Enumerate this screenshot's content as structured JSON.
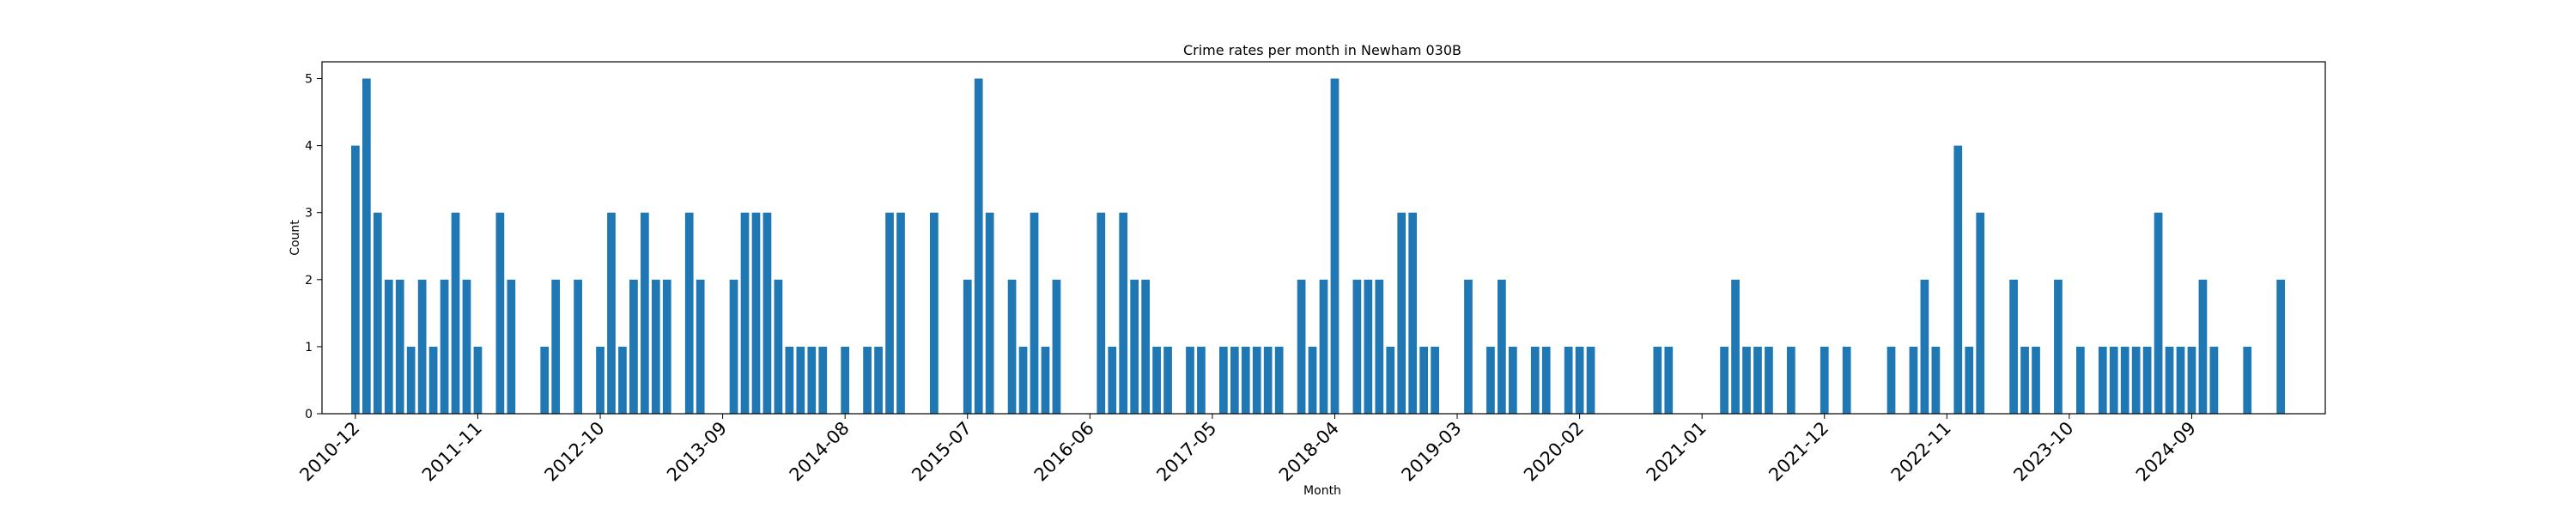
{
  "chart_data": {
    "type": "bar",
    "title": "Crime rates per month in Newham 030B",
    "xlabel": "Month",
    "ylabel": "Count",
    "ylim": [
      0,
      5.25
    ],
    "yticks": [
      0,
      1,
      2,
      3,
      4,
      5
    ],
    "xtick_labels": [
      "2010-12",
      "2011-11",
      "2012-10",
      "2013-09",
      "2014-08",
      "2015-07",
      "2016-06",
      "2017-05",
      "2018-04",
      "2019-03",
      "2020-02",
      "2021-01",
      "2021-12",
      "2022-11",
      "2023-10",
      "2024-09"
    ],
    "grid": false,
    "color": "#1f77b4",
    "points": [
      {
        "month": "2010-12",
        "value": 4
      },
      {
        "month": "2011-01",
        "value": 5
      },
      {
        "month": "2011-02",
        "value": 3
      },
      {
        "month": "2011-03",
        "value": 2
      },
      {
        "month": "2011-04",
        "value": 2
      },
      {
        "month": "2011-05",
        "value": 1
      },
      {
        "month": "2011-06",
        "value": 2
      },
      {
        "month": "2011-07",
        "value": 1
      },
      {
        "month": "2011-08",
        "value": 2
      },
      {
        "month": "2011-09",
        "value": 3
      },
      {
        "month": "2011-10",
        "value": 2
      },
      {
        "month": "2011-11",
        "value": 1
      },
      {
        "month": "2012-01",
        "value": 3
      },
      {
        "month": "2012-02",
        "value": 2
      },
      {
        "month": "2012-05",
        "value": 1
      },
      {
        "month": "2012-06",
        "value": 2
      },
      {
        "month": "2012-08",
        "value": 2
      },
      {
        "month": "2012-10",
        "value": 1
      },
      {
        "month": "2012-11",
        "value": 3
      },
      {
        "month": "2012-12",
        "value": 1
      },
      {
        "month": "2013-01",
        "value": 2
      },
      {
        "month": "2013-02",
        "value": 3
      },
      {
        "month": "2013-03",
        "value": 2
      },
      {
        "month": "2013-04",
        "value": 2
      },
      {
        "month": "2013-06",
        "value": 3
      },
      {
        "month": "2013-07",
        "value": 2
      },
      {
        "month": "2013-10",
        "value": 2
      },
      {
        "month": "2013-11",
        "value": 3
      },
      {
        "month": "2013-12",
        "value": 3
      },
      {
        "month": "2014-01",
        "value": 3
      },
      {
        "month": "2014-02",
        "value": 2
      },
      {
        "month": "2014-03",
        "value": 1
      },
      {
        "month": "2014-04",
        "value": 1
      },
      {
        "month": "2014-05",
        "value": 1
      },
      {
        "month": "2014-06",
        "value": 1
      },
      {
        "month": "2014-08",
        "value": 1
      },
      {
        "month": "2014-10",
        "value": 1
      },
      {
        "month": "2014-11",
        "value": 1
      },
      {
        "month": "2014-12",
        "value": 3
      },
      {
        "month": "2015-01",
        "value": 3
      },
      {
        "month": "2015-04",
        "value": 3
      },
      {
        "month": "2015-07",
        "value": 2
      },
      {
        "month": "2015-08",
        "value": 5
      },
      {
        "month": "2015-09",
        "value": 3
      },
      {
        "month": "2015-11",
        "value": 2
      },
      {
        "month": "2015-12",
        "value": 1
      },
      {
        "month": "2016-01",
        "value": 3
      },
      {
        "month": "2016-02",
        "value": 1
      },
      {
        "month": "2016-03",
        "value": 2
      },
      {
        "month": "2016-07",
        "value": 3
      },
      {
        "month": "2016-08",
        "value": 1
      },
      {
        "month": "2016-09",
        "value": 3
      },
      {
        "month": "2016-10",
        "value": 2
      },
      {
        "month": "2016-11",
        "value": 2
      },
      {
        "month": "2016-12",
        "value": 1
      },
      {
        "month": "2017-01",
        "value": 1
      },
      {
        "month": "2017-03",
        "value": 1
      },
      {
        "month": "2017-04",
        "value": 1
      },
      {
        "month": "2017-06",
        "value": 1
      },
      {
        "month": "2017-07",
        "value": 1
      },
      {
        "month": "2017-08",
        "value": 1
      },
      {
        "month": "2017-09",
        "value": 1
      },
      {
        "month": "2017-10",
        "value": 1
      },
      {
        "month": "2017-11",
        "value": 1
      },
      {
        "month": "2018-01",
        "value": 2
      },
      {
        "month": "2018-02",
        "value": 1
      },
      {
        "month": "2018-03",
        "value": 2
      },
      {
        "month": "2018-04",
        "value": 5
      },
      {
        "month": "2018-06",
        "value": 2
      },
      {
        "month": "2018-07",
        "value": 2
      },
      {
        "month": "2018-08",
        "value": 2
      },
      {
        "month": "2018-09",
        "value": 1
      },
      {
        "month": "2018-10",
        "value": 3
      },
      {
        "month": "2018-11",
        "value": 3
      },
      {
        "month": "2018-12",
        "value": 1
      },
      {
        "month": "2019-01",
        "value": 1
      },
      {
        "month": "2019-04",
        "value": 2
      },
      {
        "month": "2019-06",
        "value": 1
      },
      {
        "month": "2019-07",
        "value": 2
      },
      {
        "month": "2019-08",
        "value": 1
      },
      {
        "month": "2019-10",
        "value": 1
      },
      {
        "month": "2019-11",
        "value": 1
      },
      {
        "month": "2020-01",
        "value": 1
      },
      {
        "month": "2020-02",
        "value": 1
      },
      {
        "month": "2020-03",
        "value": 1
      },
      {
        "month": "2020-09",
        "value": 1
      },
      {
        "month": "2020-10",
        "value": 1
      },
      {
        "month": "2021-03",
        "value": 1
      },
      {
        "month": "2021-04",
        "value": 2
      },
      {
        "month": "2021-05",
        "value": 1
      },
      {
        "month": "2021-06",
        "value": 1
      },
      {
        "month": "2021-07",
        "value": 1
      },
      {
        "month": "2021-09",
        "value": 1
      },
      {
        "month": "2021-12",
        "value": 1
      },
      {
        "month": "2022-02",
        "value": 1
      },
      {
        "month": "2022-06",
        "value": 1
      },
      {
        "month": "2022-08",
        "value": 1
      },
      {
        "month": "2022-09",
        "value": 2
      },
      {
        "month": "2022-10",
        "value": 1
      },
      {
        "month": "2022-12",
        "value": 4
      },
      {
        "month": "2023-01",
        "value": 1
      },
      {
        "month": "2023-02",
        "value": 3
      },
      {
        "month": "2023-05",
        "value": 2
      },
      {
        "month": "2023-06",
        "value": 1
      },
      {
        "month": "2023-07",
        "value": 1
      },
      {
        "month": "2023-09",
        "value": 2
      },
      {
        "month": "2023-11",
        "value": 1
      },
      {
        "month": "2024-01",
        "value": 1
      },
      {
        "month": "2024-02",
        "value": 1
      },
      {
        "month": "2024-03",
        "value": 1
      },
      {
        "month": "2024-04",
        "value": 1
      },
      {
        "month": "2024-05",
        "value": 1
      },
      {
        "month": "2024-06",
        "value": 3
      },
      {
        "month": "2024-07",
        "value": 1
      },
      {
        "month": "2024-08",
        "value": 1
      },
      {
        "month": "2024-09",
        "value": 1
      },
      {
        "month": "2024-10",
        "value": 2
      },
      {
        "month": "2024-11",
        "value": 1
      },
      {
        "month": "2025-02",
        "value": 1
      },
      {
        "month": "2025-05",
        "value": 2
      }
    ]
  }
}
